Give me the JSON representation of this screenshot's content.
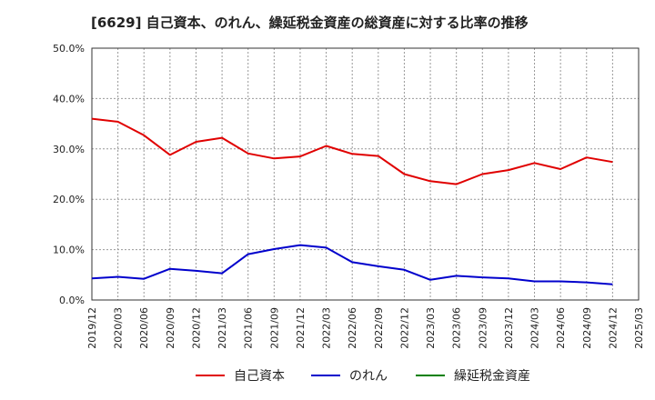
{
  "chart_data": {
    "type": "line",
    "title": "[6629]  自己資本、のれん、繰延税金資産の総資産に対する比率の推移",
    "xlabel": "",
    "ylabel": "",
    "ylim": [
      0,
      50
    ],
    "y_ticks": [
      "0.0%",
      "10.0%",
      "20.0%",
      "30.0%",
      "40.0%",
      "50.0%"
    ],
    "categories": [
      "2019/12",
      "2020/03",
      "2020/06",
      "2020/09",
      "2020/12",
      "2021/03",
      "2021/06",
      "2021/09",
      "2021/12",
      "2022/03",
      "2022/06",
      "2022/09",
      "2022/12",
      "2023/03",
      "2023/06",
      "2023/09",
      "2023/12",
      "2024/03",
      "2024/06",
      "2024/09",
      "2024/12",
      "2025/03"
    ],
    "grid": true,
    "legend_position": "bottom",
    "series": [
      {
        "name": "自己資本",
        "color": "#e00000",
        "values": [
          36.0,
          35.4,
          32.7,
          28.8,
          31.4,
          32.2,
          29.1,
          28.1,
          28.5,
          30.6,
          29.0,
          28.6,
          25.0,
          23.6,
          23.0,
          25.0,
          25.8,
          27.2,
          26.0,
          28.3,
          27.4,
          null
        ]
      },
      {
        "name": "のれん",
        "color": "#0000cc",
        "values": [
          4.3,
          4.6,
          4.2,
          6.2,
          5.8,
          5.3,
          9.1,
          10.1,
          10.9,
          10.4,
          7.5,
          6.7,
          6.0,
          4.0,
          4.8,
          4.5,
          4.3,
          3.7,
          3.7,
          3.5,
          3.1,
          null
        ]
      },
      {
        "name": "繰延税金資産",
        "color": "#008000",
        "values": [
          null,
          null,
          null,
          null,
          null,
          null,
          null,
          null,
          null,
          null,
          null,
          null,
          null,
          null,
          null,
          null,
          null,
          null,
          null,
          null,
          null,
          null
        ]
      }
    ]
  }
}
